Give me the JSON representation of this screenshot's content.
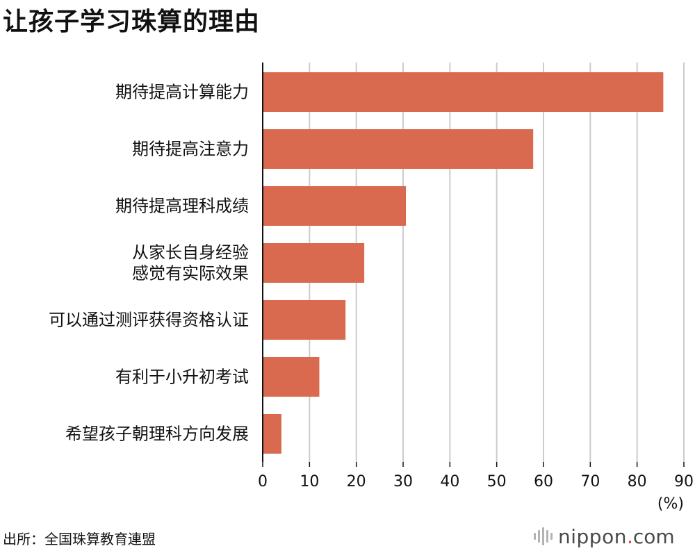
{
  "title": "让孩子学习珠算的理由",
  "source": "出所：全国珠算教育連盟",
  "brand": {
    "name": "nippon",
    "dot": ".",
    "tld": "com"
  },
  "colors": {
    "bar": "#d9694f",
    "grid": "#cccccc",
    "axis": "#111111",
    "text": "#111111"
  },
  "chart_data": {
    "type": "bar",
    "orientation": "horizontal",
    "categories": [
      [
        "期待提高计算能力"
      ],
      [
        "期待提高注意力"
      ],
      [
        "期待提高理科成绩"
      ],
      [
        "从家长自身经验",
        "感觉有实际效果"
      ],
      [
        "可以通过测评获得资格认证"
      ],
      [
        "有利于小升初考试"
      ],
      [
        "希望孩子朝理科方向发展"
      ]
    ],
    "values": [
      85.6,
      57.8,
      30.6,
      21.7,
      17.7,
      12.1,
      4.0
    ],
    "xlim": [
      0,
      90
    ],
    "xticks": [
      0,
      10,
      20,
      30,
      40,
      50,
      60,
      70,
      80,
      90
    ],
    "unit_label": "(%)",
    "grid": "vertical"
  }
}
